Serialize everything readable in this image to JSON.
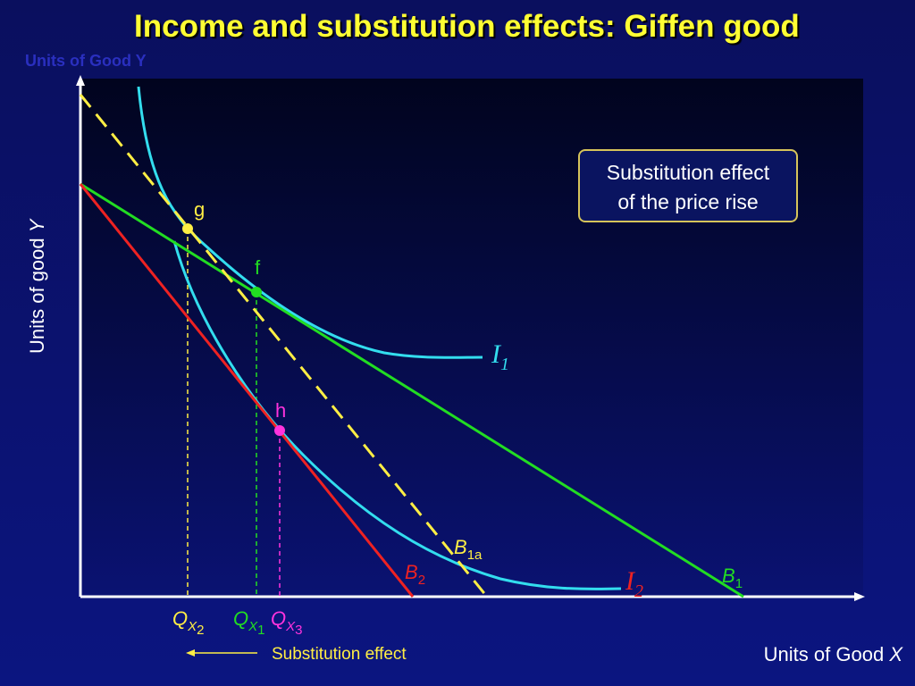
{
  "title": "Income and substitution effects: Giffen good",
  "ghost_axis_label": "Units of Good Y",
  "y_axis": {
    "text": "Units of good ",
    "var": "Y"
  },
  "x_axis": {
    "text": "Units of Good ",
    "var": "X"
  },
  "callout": {
    "line1": "Substitution effect",
    "line2": "of the price rise"
  },
  "points": {
    "g": "g",
    "f": "f",
    "h": "h"
  },
  "budget_lines": {
    "b1": {
      "main": "B",
      "sub": "1"
    },
    "b1a": {
      "main": "B",
      "sub": "1a"
    },
    "b2": {
      "main": "B",
      "sub": "2"
    }
  },
  "indifference_curves": {
    "i1": {
      "main": "I",
      "sub": "1"
    },
    "i2": {
      "main": "I",
      "sub": "2"
    }
  },
  "quantities": {
    "qx2": {
      "main": "Q",
      "mid": "X",
      "sub": "2"
    },
    "qx1": {
      "main": "Q",
      "mid": "X",
      "sub": "1"
    },
    "qx3": {
      "main": "Q",
      "mid": "X",
      "sub": "3"
    }
  },
  "substitution_arrow_label": "Substitution effect",
  "colors": {
    "title": "#ffff33",
    "b1": "#22dd22",
    "b1a": "#ffee44",
    "b2": "#ee2222",
    "curves": "#33ddee",
    "g": "#ffee44",
    "f": "#22dd22",
    "h": "#ff33dd",
    "axes": "#ffffff"
  }
}
